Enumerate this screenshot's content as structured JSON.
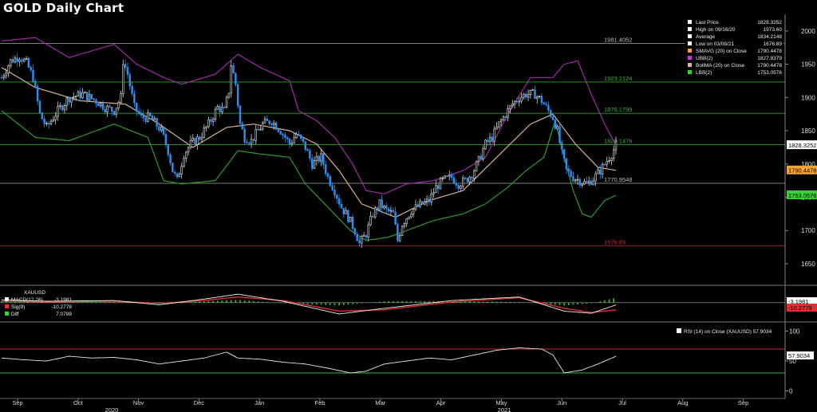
{
  "title": "GOLD Daily Chart",
  "chart_data": [
    {
      "type": "line",
      "subtype": "candlestick",
      "title": "GOLD Daily Chart",
      "ylim": [
        1620,
        2025
      ],
      "yticks": [
        1650,
        1700,
        1750,
        1800,
        1850,
        1900,
        1950,
        2000
      ],
      "x_month_ticks": [
        "Sep",
        "Oct",
        "Nov",
        "Dec",
        "Jan",
        "Feb",
        "Mar",
        "Apr",
        "May",
        "Jun",
        "Jul",
        "Aug",
        "Sep"
      ],
      "x_year_labels": [
        "2020",
        "2021"
      ],
      "legend": [
        {
          "label": "Last Price",
          "value": "1828.3252",
          "color": "#ffffff"
        },
        {
          "label": "High on 09/16/20",
          "value": "1973.60",
          "color": "#ffffff"
        },
        {
          "label": "Average",
          "value": "1834.2148",
          "color": "#ffffff"
        },
        {
          "label": "Low on 03/08/21",
          "value": "1676.89",
          "color": "#ffffff"
        },
        {
          "label": "SMAVG (20)  on Close",
          "value": "1790.4478",
          "color": "#f2a33a"
        },
        {
          "label": "UBB(2)",
          "value": "1827.8379",
          "color": "#c03ad0"
        },
        {
          "label": "BollMA (20)  on Close",
          "value": "1790.4478",
          "color": "#e0b0a0"
        },
        {
          "label": "LBB(2)",
          "value": "1753.0576",
          "color": "#3ad03a"
        }
      ],
      "levels": [
        {
          "label": "1981.4052",
          "value": 1981.4052,
          "color": "#bbbbbb"
        },
        {
          "label": "1923.2124",
          "value": 1923.2124,
          "color": "#3ab03a"
        },
        {
          "label": "1876.1799",
          "value": 1876.1799,
          "color": "#3ab03a"
        },
        {
          "label": "1829.1476",
          "value": 1829.1476,
          "color": "#3ab03a"
        },
        {
          "label": "1770.9548",
          "value": 1770.9548,
          "color": "#bbbbbb"
        },
        {
          "label": "1676.89",
          "value": 1676.89,
          "color": "#c03030"
        }
      ],
      "right_tags": [
        {
          "label": "1828.3252",
          "value": 1828.3252,
          "bg": "#ffffff",
          "fg": "#000000"
        },
        {
          "label": "1790.4478",
          "value": 1790.4478,
          "bg": "#f2a33a",
          "fg": "#000000"
        },
        {
          "label": "1753.0576",
          "value": 1753.0576,
          "bg": "#3ad03a",
          "fg": "#000000"
        }
      ],
      "close_path": [
        [
          0,
          1930
        ],
        [
          4,
          1955
        ],
        [
          8,
          1962
        ],
        [
          11,
          1952
        ],
        [
          14,
          1930
        ],
        [
          17,
          1875
        ],
        [
          20,
          1855
        ],
        [
          25,
          1880
        ],
        [
          30,
          1900
        ],
        [
          36,
          1905
        ],
        [
          42,
          1895
        ],
        [
          46,
          1885
        ],
        [
          50,
          1880
        ],
        [
          53,
          1900
        ],
        [
          54,
          1955
        ],
        [
          56,
          1935
        ],
        [
          59,
          1885
        ],
        [
          62,
          1870
        ],
        [
          66,
          1870
        ],
        [
          71,
          1850
        ],
        [
          74,
          1820
        ],
        [
          76,
          1790
        ],
        [
          78,
          1775
        ],
        [
          81,
          1815
        ],
        [
          84,
          1830
        ],
        [
          88,
          1840
        ],
        [
          92,
          1860
        ],
        [
          96,
          1885
        ],
        [
          99,
          1880
        ],
        [
          101,
          1910
        ],
        [
          102,
          1950
        ],
        [
          104,
          1920
        ],
        [
          106,
          1860
        ],
        [
          108,
          1840
        ],
        [
          111,
          1835
        ],
        [
          116,
          1860
        ],
        [
          120,
          1865
        ],
        [
          124,
          1850
        ],
        [
          128,
          1830
        ],
        [
          131,
          1845
        ],
        [
          135,
          1825
        ],
        [
          138,
          1800
        ],
        [
          142,
          1810
        ],
        [
          145,
          1780
        ],
        [
          148,
          1760
        ],
        [
          151,
          1735
        ],
        [
          154,
          1720
        ],
        [
          157,
          1700
        ],
        [
          159,
          1680
        ],
        [
          162,
          1695
        ],
        [
          165,
          1725
        ],
        [
          168,
          1740
        ],
        [
          171,
          1730
        ],
        [
          174,
          1725
        ],
        [
          176,
          1685
        ],
        [
          178,
          1710
        ],
        [
          182,
          1730
        ],
        [
          186,
          1738
        ],
        [
          190,
          1745
        ],
        [
          193,
          1765
        ],
        [
          196,
          1775
        ],
        [
          200,
          1780
        ],
        [
          203,
          1770
        ],
        [
          206,
          1775
        ],
        [
          209,
          1785
        ],
        [
          212,
          1805
        ],
        [
          215,
          1830
        ],
        [
          218,
          1840
        ],
        [
          221,
          1860
        ],
        [
          224,
          1875
        ],
        [
          227,
          1890
        ],
        [
          230,
          1900
        ],
        [
          233,
          1905
        ],
        [
          237,
          1905
        ],
        [
          240,
          1895
        ],
        [
          243,
          1880
        ],
        [
          245,
          1870
        ],
        [
          247,
          1850
        ],
        [
          249,
          1815
        ],
        [
          251,
          1790
        ],
        [
          254,
          1780
        ],
        [
          257,
          1775
        ],
        [
          260,
          1770
        ],
        [
          263,
          1778
        ],
        [
          266,
          1790
        ],
        [
          269,
          1805
        ],
        [
          271,
          1815
        ],
        [
          273,
          1828.3
        ]
      ],
      "sma20": [
        [
          0,
          1945
        ],
        [
          15,
          1915
        ],
        [
          35,
          1895
        ],
        [
          55,
          1890
        ],
        [
          70,
          1860
        ],
        [
          85,
          1825
        ],
        [
          100,
          1855
        ],
        [
          112,
          1860
        ],
        [
          128,
          1850
        ],
        [
          140,
          1830
        ],
        [
          150,
          1790
        ],
        [
          160,
          1740
        ],
        [
          175,
          1720
        ],
        [
          190,
          1745
        ],
        [
          205,
          1760
        ],
        [
          220,
          1810
        ],
        [
          235,
          1860
        ],
        [
          245,
          1875
        ],
        [
          255,
          1830
        ],
        [
          265,
          1795
        ],
        [
          273,
          1790.4
        ]
      ],
      "ubb": [
        [
          0,
          1985
        ],
        [
          15,
          1990
        ],
        [
          30,
          1960
        ],
        [
          50,
          1980
        ],
        [
          60,
          1950
        ],
        [
          72,
          1930
        ],
        [
          80,
          1920
        ],
        [
          95,
          1935
        ],
        [
          105,
          1965
        ],
        [
          115,
          1945
        ],
        [
          128,
          1925
        ],
        [
          132,
          1880
        ],
        [
          140,
          1865
        ],
        [
          148,
          1840
        ],
        [
          156,
          1800
        ],
        [
          162,
          1760
        ],
        [
          170,
          1755
        ],
        [
          180,
          1770
        ],
        [
          192,
          1775
        ],
        [
          205,
          1790
        ],
        [
          215,
          1810
        ],
        [
          225,
          1875
        ],
        [
          235,
          1930
        ],
        [
          245,
          1930
        ],
        [
          250,
          1950
        ],
        [
          256,
          1955
        ],
        [
          262,
          1905
        ],
        [
          268,
          1860
        ],
        [
          273,
          1827.8
        ]
      ],
      "lbb": [
        [
          0,
          1880
        ],
        [
          15,
          1840
        ],
        [
          30,
          1835
        ],
        [
          50,
          1860
        ],
        [
          65,
          1840
        ],
        [
          72,
          1775
        ],
        [
          80,
          1770
        ],
        [
          95,
          1775
        ],
        [
          105,
          1820
        ],
        [
          115,
          1815
        ],
        [
          128,
          1810
        ],
        [
          135,
          1770
        ],
        [
          145,
          1735
        ],
        [
          155,
          1700
        ],
        [
          162,
          1685
        ],
        [
          172,
          1690
        ],
        [
          180,
          1700
        ],
        [
          192,
          1715
        ],
        [
          205,
          1725
        ],
        [
          215,
          1740
        ],
        [
          225,
          1765
        ],
        [
          233,
          1790
        ],
        [
          241,
          1810
        ],
        [
          246,
          1865
        ],
        [
          250,
          1810
        ],
        [
          254,
          1760
        ],
        [
          258,
          1725
        ],
        [
          262,
          1720
        ],
        [
          268,
          1745
        ],
        [
          273,
          1753
        ]
      ]
    },
    {
      "type": "line",
      "title": "XAUUSD",
      "legend": [
        {
          "label": "MACD(12,26)",
          "value": "-3.1981",
          "color": "#ffffff"
        },
        {
          "label": "Sig(9)",
          "value": "-10.2778",
          "color": "#e03030"
        },
        {
          "label": "Diff",
          "value": "7.0798",
          "color": "#3ad03a"
        }
      ],
      "right_tags": [
        {
          "label": "-3.1981",
          "value": -3.1981,
          "bg": "#ffffff",
          "fg": "#000000"
        },
        {
          "label": "-10.2778",
          "value": -10.2778,
          "bg": "#e03030",
          "fg": "#000000"
        }
      ],
      "series": [
        {
          "name": "MACD(12,26)",
          "values": [
            [
              0,
              4
            ],
            [
              20,
              2
            ],
            [
              50,
              3
            ],
            [
              70,
              -3
            ],
            [
              90,
              5
            ],
            [
              105,
              12
            ],
            [
              125,
              2
            ],
            [
              150,
              -16
            ],
            [
              170,
              -8
            ],
            [
              200,
              3
            ],
            [
              230,
              8
            ],
            [
              250,
              -12
            ],
            [
              262,
              -15
            ],
            [
              273,
              -3.2
            ]
          ]
        },
        {
          "name": "Sig(9)",
          "values": [
            [
              0,
              2
            ],
            [
              20,
              1
            ],
            [
              50,
              2
            ],
            [
              70,
              -1
            ],
            [
              90,
              3
            ],
            [
              105,
              8
            ],
            [
              125,
              3
            ],
            [
              150,
              -12
            ],
            [
              170,
              -10
            ],
            [
              200,
              1
            ],
            [
              230,
              7
            ],
            [
              250,
              -8
            ],
            [
              262,
              -14
            ],
            [
              273,
              -10.3
            ]
          ]
        }
      ]
    },
    {
      "type": "line",
      "title": "",
      "ylim": [
        -10,
        110
      ],
      "yticks": [
        0,
        50,
        100
      ],
      "legend": [
        {
          "label": "RSI (14)  on Close (XAUUSD)",
          "value": "57.9034",
          "color": "#ffffff"
        }
      ],
      "levels": [
        {
          "value": 70,
          "color": "#c03030"
        },
        {
          "value": 30,
          "color": "#3ab03a"
        }
      ],
      "right_tags": [
        {
          "label": "57.9034",
          "value": 57.9034,
          "bg": "#ffffff",
          "fg": "#000000"
        }
      ],
      "values": [
        [
          0,
          55
        ],
        [
          10,
          52
        ],
        [
          20,
          50
        ],
        [
          30,
          58
        ],
        [
          40,
          55
        ],
        [
          50,
          56
        ],
        [
          60,
          52
        ],
        [
          70,
          45
        ],
        [
          80,
          50
        ],
        [
          90,
          55
        ],
        [
          100,
          65
        ],
        [
          105,
          55
        ],
        [
          115,
          53
        ],
        [
          125,
          48
        ],
        [
          135,
          45
        ],
        [
          145,
          38
        ],
        [
          155,
          30
        ],
        [
          162,
          33
        ],
        [
          170,
          45
        ],
        [
          180,
          50
        ],
        [
          190,
          55
        ],
        [
          200,
          52
        ],
        [
          210,
          60
        ],
        [
          220,
          68
        ],
        [
          230,
          72
        ],
        [
          240,
          70
        ],
        [
          245,
          60
        ],
        [
          250,
          30
        ],
        [
          258,
          35
        ],
        [
          265,
          45
        ],
        [
          273,
          57.9
        ]
      ]
    }
  ]
}
